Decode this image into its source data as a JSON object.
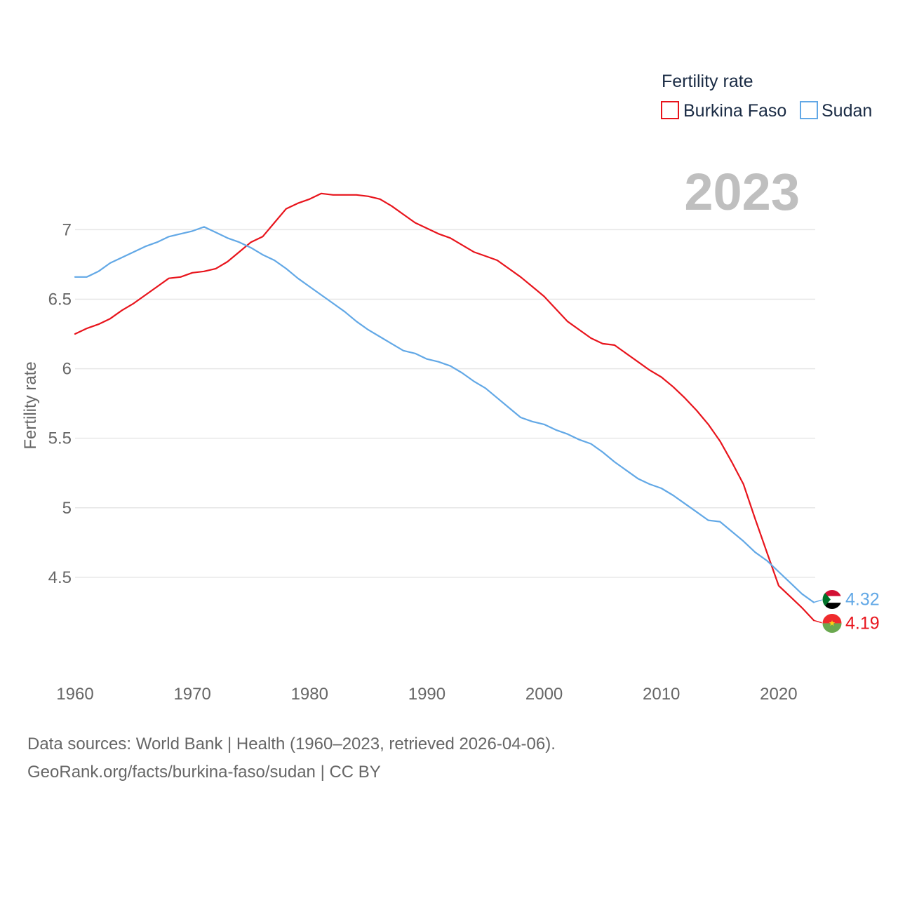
{
  "chart_data": {
    "type": "line",
    "title": "",
    "year_label": "2023",
    "xlabel": "",
    "ylabel": "Fertility rate",
    "xlim": [
      1960,
      2023
    ],
    "ylim": [
      4.0,
      7.35
    ],
    "x_ticks": [
      1960,
      1970,
      1980,
      1990,
      2000,
      2010,
      2020
    ],
    "y_ticks": [
      4.5,
      5,
      5.5,
      6,
      6.5,
      7
    ],
    "y_tick_labels": [
      "4.5",
      "5",
      "5.5",
      "6",
      "6.5",
      "7"
    ],
    "x_tick_labels": [
      "1960",
      "1970",
      "1980",
      "1990",
      "2000",
      "2010",
      "2020"
    ],
    "grid": true,
    "legend": {
      "title": "Fertility rate",
      "position": "top-right"
    },
    "x": [
      1960,
      1961,
      1962,
      1963,
      1964,
      1965,
      1966,
      1967,
      1968,
      1969,
      1970,
      1971,
      1972,
      1973,
      1974,
      1975,
      1976,
      1977,
      1978,
      1979,
      1980,
      1981,
      1982,
      1983,
      1984,
      1985,
      1986,
      1987,
      1988,
      1989,
      1990,
      1991,
      1992,
      1993,
      1994,
      1995,
      1996,
      1997,
      1998,
      1999,
      2000,
      2001,
      2002,
      2003,
      2004,
      2005,
      2006,
      2007,
      2008,
      2009,
      2010,
      2011,
      2012,
      2013,
      2014,
      2015,
      2016,
      2017,
      2018,
      2019,
      2020,
      2021,
      2022,
      2023
    ],
    "series": [
      {
        "name": "Burkina Faso",
        "color": "#e8141c",
        "end_label": "4.19",
        "flag": "burkina-faso-flag",
        "values": [
          6.25,
          6.29,
          6.32,
          6.36,
          6.42,
          6.47,
          6.53,
          6.59,
          6.65,
          6.66,
          6.69,
          6.7,
          6.72,
          6.77,
          6.84,
          6.91,
          6.95,
          7.05,
          7.15,
          7.19,
          7.22,
          7.26,
          7.25,
          7.25,
          7.25,
          7.24,
          7.22,
          7.17,
          7.11,
          7.05,
          7.01,
          6.97,
          6.94,
          6.89,
          6.84,
          6.81,
          6.78,
          6.72,
          6.66,
          6.59,
          6.52,
          6.43,
          6.34,
          6.28,
          6.22,
          6.18,
          6.17,
          6.11,
          6.05,
          5.99,
          5.94,
          5.87,
          5.79,
          5.7,
          5.6,
          5.48,
          5.33,
          5.17,
          4.92,
          4.68,
          4.44,
          4.36,
          4.28,
          4.19
        ]
      },
      {
        "name": "Sudan",
        "color": "#62a8e6",
        "end_label": "4.32",
        "flag": "sudan-flag",
        "values": [
          6.66,
          6.66,
          6.7,
          6.76,
          6.8,
          6.84,
          6.88,
          6.91,
          6.95,
          6.97,
          6.99,
          7.02,
          6.98,
          6.94,
          6.91,
          6.87,
          6.82,
          6.78,
          6.72,
          6.65,
          6.59,
          6.53,
          6.47,
          6.41,
          6.34,
          6.28,
          6.23,
          6.18,
          6.13,
          6.11,
          6.07,
          6.05,
          6.02,
          5.97,
          5.91,
          5.86,
          5.79,
          5.72,
          5.65,
          5.62,
          5.6,
          5.56,
          5.53,
          5.49,
          5.46,
          5.4,
          5.33,
          5.27,
          5.21,
          5.17,
          5.14,
          5.09,
          5.03,
          4.97,
          4.91,
          4.9,
          4.83,
          4.76,
          4.68,
          4.62,
          4.54,
          4.46,
          4.38,
          4.32
        ]
      }
    ]
  },
  "footer": {
    "source_line": "Data sources: World Bank | Health (1960–2023, retrieved 2026-04-06).",
    "url_line": "GeoRank.org/facts/burkina-faso/sudan | CC BY"
  },
  "colors": {
    "grid": "#e6e6e6",
    "axis_text": "#666666",
    "year_watermark": "#bfbfbf",
    "legend_text": "#1a2b44"
  }
}
